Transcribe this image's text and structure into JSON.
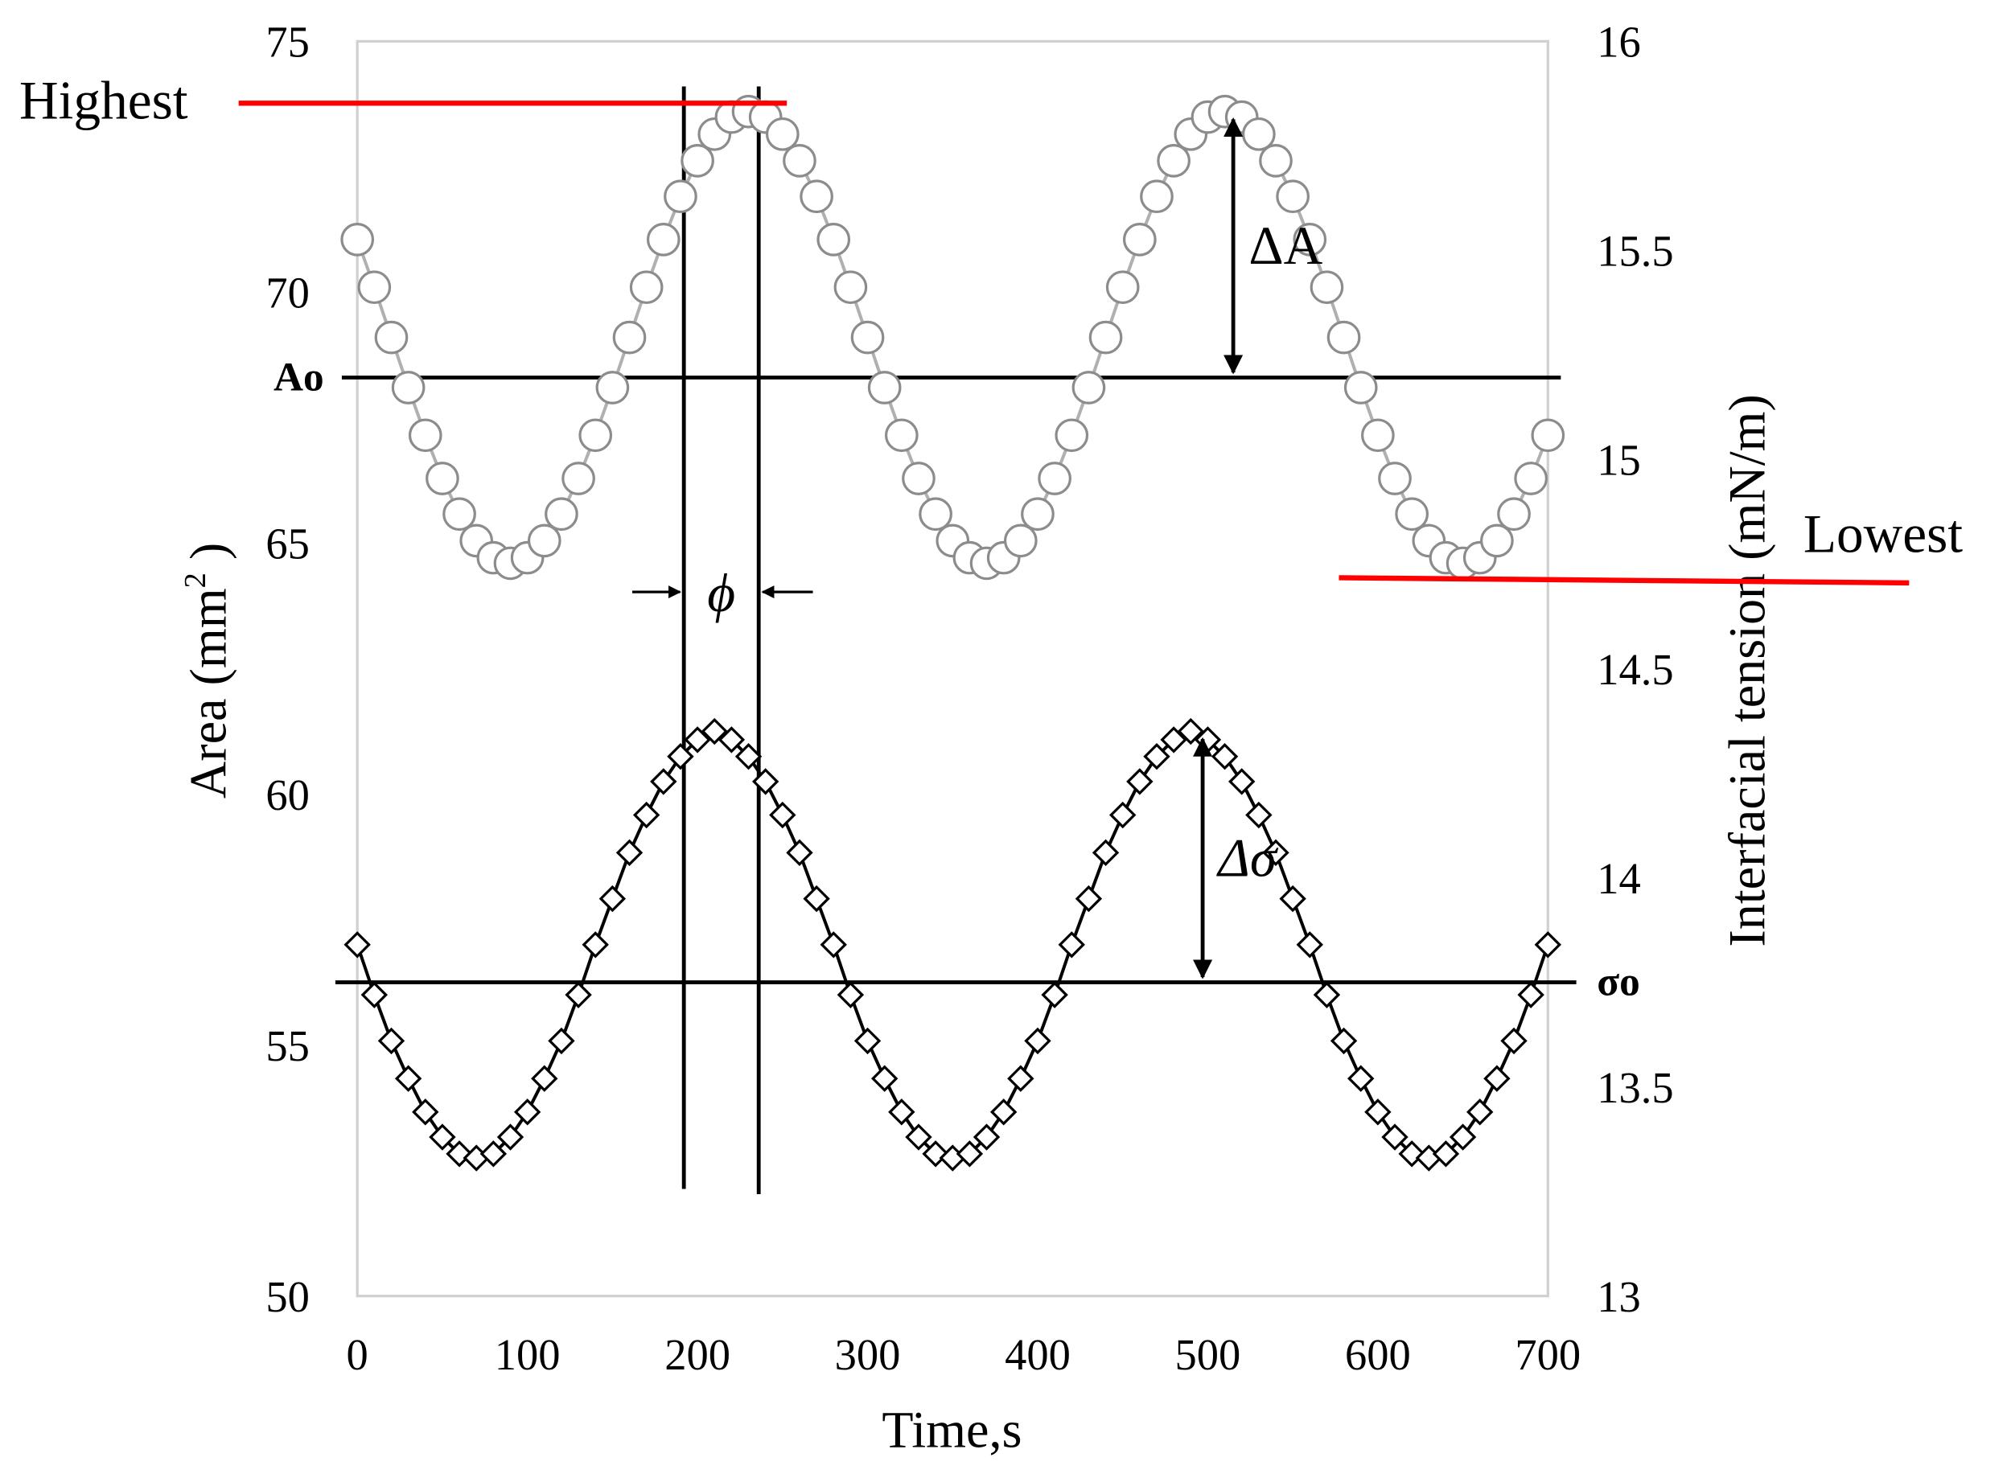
{
  "chart_data": {
    "type": "line",
    "xlabel": "Time,s",
    "ylabel_parts": [
      "Area (mm",
      "2",
      " )"
    ],
    "y2label": "Interfacial tension (mN/m)",
    "x": [
      0,
      10,
      20,
      30,
      40,
      50,
      60,
      70,
      80,
      90,
      100,
      110,
      120,
      130,
      140,
      150,
      160,
      170,
      180,
      190,
      200,
      210,
      220,
      230,
      240,
      250,
      260,
      270,
      280,
      290,
      300,
      310,
      320,
      330,
      340,
      350,
      360,
      370,
      380,
      390,
      400,
      410,
      420,
      430,
      440,
      450,
      460,
      470,
      480,
      490,
      500,
      510,
      520,
      530,
      540,
      550,
      560,
      570,
      580,
      590,
      600,
      610,
      620,
      630,
      640,
      650,
      660,
      670,
      680,
      690,
      700
    ],
    "series": [
      {
        "marker": "circle",
        "color": "#8c8c8c",
        "line_color": "#b0b0b0",
        "axis": "y",
        "values": [
          71.05,
          70.1,
          69.1,
          68.1,
          67.15,
          66.29,
          65.58,
          65.05,
          64.71,
          64.6,
          64.71,
          65.05,
          65.58,
          66.29,
          67.15,
          68.1,
          69.1,
          70.1,
          71.05,
          71.91,
          72.62,
          73.15,
          73.49,
          73.6,
          73.49,
          73.15,
          72.62,
          71.91,
          71.05,
          70.1,
          69.1,
          68.1,
          67.15,
          66.29,
          65.58,
          65.05,
          64.71,
          64.6,
          64.71,
          65.05,
          65.58,
          66.29,
          67.15,
          68.1,
          69.1,
          70.1,
          71.05,
          71.91,
          72.62,
          73.15,
          73.49,
          73.6,
          73.49,
          73.15,
          72.62,
          71.91,
          71.05,
          70.1,
          69.1,
          68.1,
          67.15,
          66.29,
          65.58,
          65.05,
          64.71,
          64.6,
          64.71,
          65.05,
          65.58,
          66.29,
          67.15
        ]
      },
      {
        "marker": "diamond",
        "color": "#000000",
        "line_color": "#000000",
        "axis": "y2",
        "values": [
          13.84,
          13.72,
          13.61,
          13.52,
          13.44,
          13.38,
          13.34,
          13.33,
          13.34,
          13.38,
          13.44,
          13.52,
          13.61,
          13.72,
          13.84,
          13.95,
          14.06,
          14.15,
          14.23,
          14.29,
          14.33,
          14.35,
          14.33,
          14.29,
          14.23,
          14.15,
          14.06,
          13.95,
          13.84,
          13.72,
          13.61,
          13.52,
          13.44,
          13.38,
          13.34,
          13.33,
          13.34,
          13.38,
          13.44,
          13.52,
          13.61,
          13.72,
          13.84,
          13.95,
          14.06,
          14.15,
          14.23,
          14.29,
          14.33,
          14.35,
          14.33,
          14.29,
          14.23,
          14.15,
          14.06,
          13.95,
          13.84,
          13.72,
          13.61,
          13.52,
          13.44,
          13.38,
          13.34,
          13.33,
          13.34,
          13.38,
          13.44,
          13.52,
          13.61,
          13.72,
          13.84
        ]
      }
    ],
    "xlim": [
      0,
      700
    ],
    "xticks": [
      0,
      100,
      200,
      300,
      400,
      500,
      600,
      700
    ],
    "ylim": [
      50,
      75
    ],
    "yticks": [
      50,
      55,
      60,
      65,
      70,
      75
    ],
    "y2lim": [
      13,
      16
    ],
    "y2ticks": [
      13,
      13.5,
      14,
      14.5,
      15,
      15.5,
      16
    ],
    "reference_lines": [
      {
        "label": "Ao",
        "axis": "y",
        "value": 68.3
      },
      {
        "label": "σo",
        "axis": "y2",
        "value": 13.75
      }
    ],
    "amplitude_labels": [
      {
        "label": "ΔA",
        "axis": "y",
        "x": 515
      },
      {
        "label": "Δσ",
        "axis": "y2",
        "x": 497
      }
    ],
    "phase_lines": {
      "label": "ϕ",
      "x": [
        192,
        236
      ]
    },
    "extreme_labels": [
      {
        "label": "Highest",
        "color": "#ff0000"
      },
      {
        "label": "Lowest",
        "color": "#ff0000"
      }
    ]
  }
}
